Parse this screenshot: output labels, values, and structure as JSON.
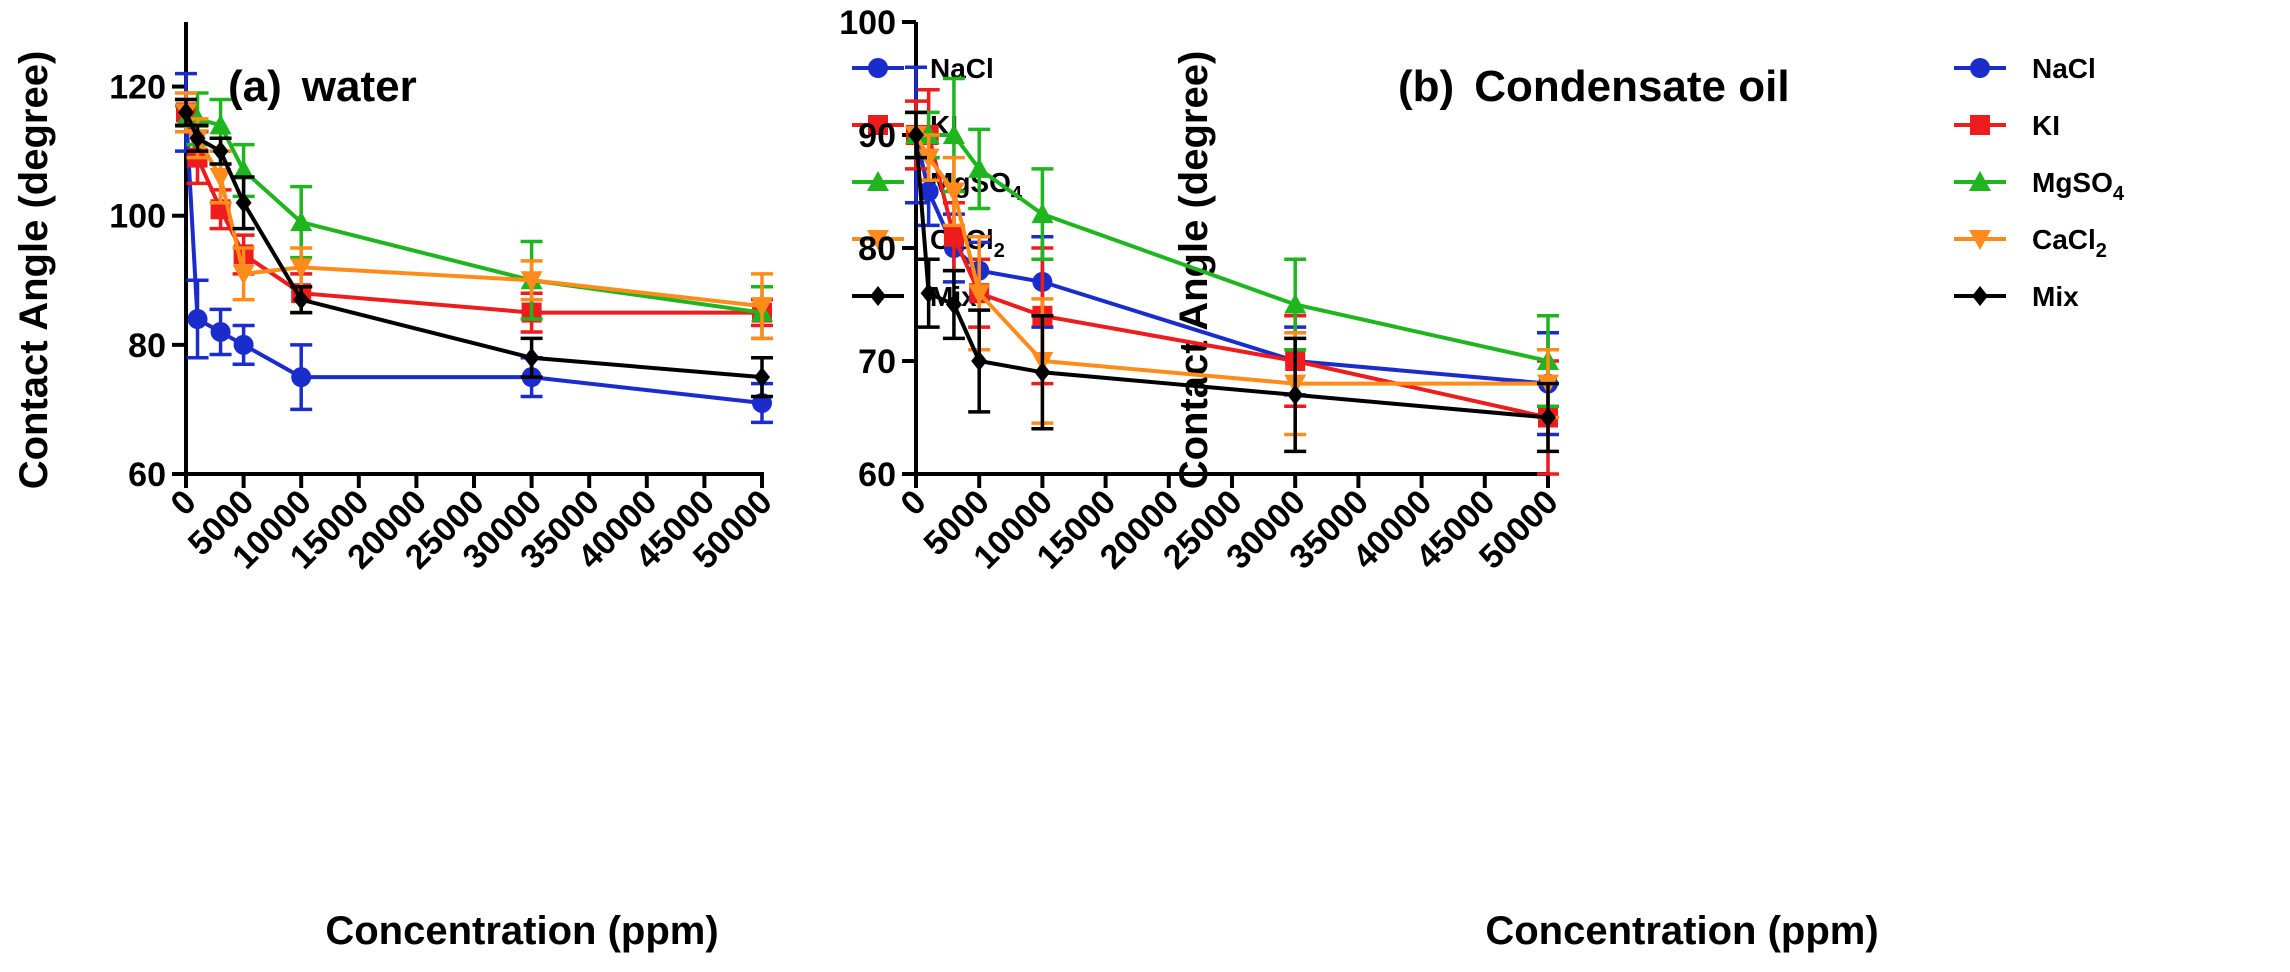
{
  "chart_data": [
    {
      "type": "line",
      "panel_label": "(a)",
      "title": "water",
      "xlabel": "Concentration (ppm)",
      "ylabel": "Contact Angle (degree)",
      "x": [
        0,
        1000,
        3000,
        5000,
        10000,
        30000,
        50000
      ],
      "xlim": [
        0,
        50000
      ],
      "ylim": [
        60,
        130
      ],
      "xticks": [
        0,
        5000,
        10000,
        15000,
        20000,
        25000,
        30000,
        35000,
        40000,
        45000,
        50000
      ],
      "xtick_labels": [
        "0",
        "5000",
        "10000",
        "15000",
        "20000",
        "25000",
        "30000",
        "35000",
        "40000",
        "45000",
        "50000"
      ],
      "yticks": [
        60,
        80,
        100,
        120
      ],
      "ytick_labels": [
        "60",
        "80",
        "100",
        "120"
      ],
      "legend_position": "top-right",
      "series": [
        {
          "name": "NaCl",
          "label_main": "NaCl",
          "label_sub": "",
          "label_tail": "",
          "color": "#1a2ccc",
          "marker": "circle",
          "values": [
            116,
            84,
            82,
            80,
            75,
            75,
            71
          ],
          "errors": [
            6,
            6,
            3.5,
            3,
            5,
            3,
            3
          ]
        },
        {
          "name": "KI",
          "label_main": "KI",
          "label_sub": "",
          "label_tail": "",
          "color": "#ee1c1c",
          "marker": "square",
          "values": [
            116,
            109,
            101,
            94,
            88,
            85,
            85
          ],
          "errors": [
            2,
            4,
            3,
            3,
            3,
            3,
            2
          ]
        },
        {
          "name": "MgSO4",
          "label_main": "MgSO",
          "label_sub": "4",
          "label_tail": "",
          "color": "#1fb51f",
          "marker": "triangle-up",
          "values": [
            115,
            115,
            114,
            107,
            99,
            90,
            85
          ],
          "errors": [
            2,
            4,
            4,
            4,
            5.5,
            6,
            4
          ]
        },
        {
          "name": "CaCl2",
          "label_main": "CaCl",
          "label_sub": "2",
          "label_tail": "",
          "color": "#ff8c1a",
          "marker": "triangle-down",
          "values": [
            116,
            112,
            106,
            91,
            92,
            90,
            86
          ],
          "errors": [
            3,
            3,
            4,
            4,
            3,
            3,
            5
          ]
        },
        {
          "name": "Mix",
          "label_main": "Mix",
          "label_sub": "",
          "label_tail": "",
          "color": "#000000",
          "marker": "diamond",
          "values": [
            116,
            112,
            110,
            102,
            87,
            78,
            75
          ],
          "errors": [
            2,
            2,
            2,
            4,
            2,
            3,
            3
          ]
        }
      ]
    },
    {
      "type": "line",
      "panel_label": "(b)",
      "title": "Condensate oil",
      "xlabel": "Concentration (ppm)",
      "ylabel": "Contact Angle (degree)",
      "x": [
        0,
        1000,
        3000,
        5000,
        10000,
        30000,
        50000
      ],
      "xlim": [
        0,
        50000
      ],
      "ylim": [
        60,
        100
      ],
      "xticks": [
        0,
        5000,
        10000,
        15000,
        20000,
        25000,
        30000,
        35000,
        40000,
        45000,
        50000
      ],
      "xtick_labels": [
        "0",
        "5000",
        "10000",
        "15000",
        "20000",
        "25000",
        "30000",
        "35000",
        "40000",
        "45000",
        "50000"
      ],
      "yticks": [
        60,
        70,
        80,
        90,
        100
      ],
      "ytick_labels": [
        "60",
        "70",
        "80",
        "90",
        "100"
      ],
      "legend_position": "top-right",
      "series": [
        {
          "name": "NaCl",
          "label_main": "NaCl",
          "label_sub": "",
          "label_tail": "",
          "color": "#1a2ccc",
          "marker": "circle",
          "values": [
            90,
            85,
            80,
            78,
            77,
            70,
            68
          ],
          "errors": [
            6,
            3,
            3,
            2.5,
            4,
            3,
            4.5
          ]
        },
        {
          "name": "KI",
          "label_main": "KI",
          "label_sub": "",
          "label_tail": "",
          "color": "#ee1c1c",
          "marker": "square",
          "values": [
            90,
            90,
            81,
            76,
            74,
            70,
            65
          ],
          "errors": [
            3,
            4,
            3,
            3,
            6,
            4,
            5
          ]
        },
        {
          "name": "MgSO4",
          "label_main": "MgSO",
          "label_sub": "4",
          "label_tail": "",
          "color": "#1fb51f",
          "marker": "triangle-up",
          "values": [
            90,
            90,
            90,
            87,
            83,
            75,
            70
          ],
          "errors": [
            2,
            2,
            5,
            3.5,
            4,
            4,
            4
          ]
        },
        {
          "name": "CaCl2",
          "label_main": "CaCl",
          "label_sub": "2",
          "label_tail": "",
          "color": "#ff8c1a",
          "marker": "triangle-down",
          "values": [
            90,
            88,
            85,
            76,
            70,
            68,
            68
          ],
          "errors": [
            2,
            2,
            3,
            5,
            5.5,
            4.5,
            3
          ]
        },
        {
          "name": "Mix",
          "label_main": "Mix",
          "label_sub": "",
          "label_tail": "",
          "color": "#000000",
          "marker": "diamond",
          "values": [
            90,
            76,
            75,
            70,
            69,
            67,
            65
          ],
          "errors": [
            2,
            3,
            3,
            4.5,
            5,
            5,
            3
          ]
        }
      ]
    }
  ]
}
